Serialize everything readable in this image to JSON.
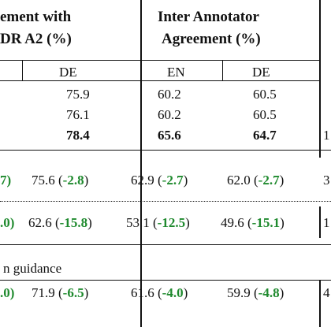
{
  "header": {
    "group1_line1": "ement with",
    "group1_line2": "DR A2 (%)",
    "group2_line1": "Inter Annotator",
    "group2_line2": "Agreement (%)",
    "sub_de1": "DE",
    "sub_en": "EN",
    "sub_de2": "DE"
  },
  "rows": [
    {
      "c1": "75.9",
      "c2": "60.2",
      "c3": "60.5"
    },
    {
      "c1": "76.1",
      "c2": "60.2",
      "c3": "60.5"
    },
    {
      "c1": "78.4",
      "c2": "65.6",
      "c3": "64.7",
      "c4": "1"
    }
  ],
  "delta_row1": {
    "left_delta": "7)",
    "c1_val": "75.6",
    "c1_delta": "-2.8",
    "c2_val": "62.9",
    "c2_delta": "-2.7",
    "c3_val": "62.0",
    "c3_delta": "-2.7",
    "c4": "3"
  },
  "delta_row2": {
    "left_delta": ".0)",
    "c1_val": "62.6",
    "c1_delta": "-15.8",
    "c2_val": "53.1",
    "c2_delta": "-12.5",
    "c3_val": "49.6",
    "c3_delta": "-15.1",
    "c4": "1"
  },
  "section_label": "n guidance",
  "delta_row3": {
    "left_delta": ".0)",
    "c1_val": "71.9",
    "c1_delta": "-6.5",
    "c2_val": "61.6",
    "c2_delta": "-4.0",
    "c3_val": "59.9",
    "c3_delta": "-4.8",
    "c4": "4"
  }
}
